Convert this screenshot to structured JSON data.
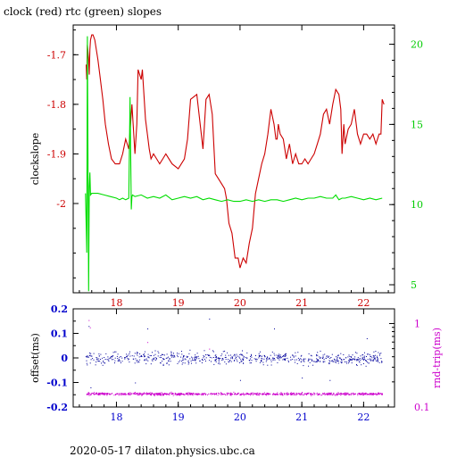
{
  "title": "clock (red) rtc (green) slopes",
  "footer": "2020-05-17  dilaton.physics.ubc.ca",
  "colors": {
    "clock": "#cc0000",
    "rtc": "#00dd00",
    "offset": "#00009c",
    "rndtrip": "#cc00cc",
    "axis_top_left": "#cc0000",
    "axis_top_right": "#00cc00",
    "axis_bottom_left": "#0000cc",
    "axis_bottom_right": "#cc00cc"
  },
  "chart_data": [
    {
      "type": "line",
      "panel": "top",
      "ylabel": "clockslope",
      "y2label": "",
      "xlim": [
        17.3,
        22.5
      ],
      "ylim": [
        -2.18,
        -1.64
      ],
      "y2lim": [
        4.5,
        21.2
      ],
      "xticks": [
        "18",
        "19",
        "20",
        "21",
        "22"
      ],
      "yticks": [
        "-1.7",
        "-1.8",
        "-1.9",
        "-2"
      ],
      "y2ticks": [
        "5",
        "10",
        "15",
        "20"
      ],
      "series": [
        {
          "name": "clock",
          "axis": "left",
          "x": [
            17.51,
            17.52,
            17.53,
            17.55,
            17.56,
            17.57,
            17.58,
            17.6,
            17.62,
            17.65,
            17.7,
            17.73,
            17.78,
            17.82,
            17.87,
            17.92,
            17.98,
            18.05,
            18.1,
            18.15,
            18.2,
            18.25,
            18.3,
            18.33,
            18.35,
            18.4,
            18.42,
            18.44,
            18.47,
            18.5,
            18.53,
            18.56,
            18.6,
            18.65,
            18.7,
            18.75,
            18.8,
            18.9,
            19.0,
            19.1,
            19.15,
            19.2,
            19.3,
            19.4,
            19.45,
            19.5,
            19.55,
            19.6,
            19.65,
            19.7,
            19.75,
            19.78,
            19.82,
            19.87,
            19.92,
            19.97,
            20.0,
            20.05,
            20.1,
            20.15,
            20.2,
            20.25,
            20.3,
            20.35,
            20.4,
            20.45,
            20.5,
            20.55,
            20.58,
            20.6,
            20.62,
            20.65,
            20.7,
            20.75,
            20.8,
            20.85,
            20.9,
            20.95,
            21.0,
            21.05,
            21.1,
            21.15,
            21.2,
            21.25,
            21.3,
            21.35,
            21.4,
            21.45,
            21.5,
            21.55,
            21.6,
            21.63,
            21.65,
            21.68,
            21.7,
            21.75,
            21.8,
            21.85,
            21.9,
            21.95,
            22.0,
            22.05,
            22.1,
            22.15,
            22.2,
            22.25,
            22.28,
            22.3,
            22.33
          ],
          "y": [
            -1.72,
            -1.75,
            -1.68,
            -1.71,
            -1.74,
            -1.69,
            -1.67,
            -1.66,
            -1.66,
            -1.67,
            -1.71,
            -1.74,
            -1.79,
            -1.84,
            -1.88,
            -1.91,
            -1.92,
            -1.92,
            -1.9,
            -1.87,
            -1.89,
            -1.8,
            -1.9,
            -1.84,
            -1.73,
            -1.75,
            -1.73,
            -1.77,
            -1.83,
            -1.86,
            -1.89,
            -1.91,
            -1.9,
            -1.91,
            -1.92,
            -1.91,
            -1.9,
            -1.92,
            -1.93,
            -1.91,
            -1.87,
            -1.79,
            -1.78,
            -1.89,
            -1.79,
            -1.78,
            -1.82,
            -1.94,
            -1.95,
            -1.96,
            -1.97,
            -1.99,
            -2.04,
            -2.06,
            -2.11,
            -2.11,
            -2.13,
            -2.11,
            -2.12,
            -2.08,
            -2.05,
            -1.98,
            -1.95,
            -1.92,
            -1.9,
            -1.86,
            -1.81,
            -1.84,
            -1.87,
            -1.87,
            -1.84,
            -1.86,
            -1.87,
            -1.91,
            -1.88,
            -1.92,
            -1.9,
            -1.92,
            -1.92,
            -1.91,
            -1.92,
            -1.91,
            -1.9,
            -1.88,
            -1.86,
            -1.82,
            -1.81,
            -1.84,
            -1.8,
            -1.77,
            -1.78,
            -1.81,
            -1.9,
            -1.84,
            -1.88,
            -1.85,
            -1.84,
            -1.81,
            -1.86,
            -1.88,
            -1.86,
            -1.86,
            -1.87,
            -1.86,
            -1.88,
            -1.86,
            -1.86,
            -1.79,
            -1.8
          ]
        },
        {
          "name": "rtc",
          "axis": "right",
          "x": [
            17.5,
            17.52,
            17.53,
            17.55,
            17.56,
            17.57,
            17.58,
            17.6,
            17.7,
            17.8,
            17.9,
            18.0,
            18.05,
            18.1,
            18.15,
            18.2,
            18.22,
            18.24,
            18.25,
            18.26,
            18.3,
            18.4,
            18.5,
            18.6,
            18.7,
            18.8,
            18.9,
            19.0,
            19.1,
            19.2,
            19.3,
            19.4,
            19.5,
            19.6,
            19.7,
            19.8,
            19.9,
            20.0,
            20.1,
            20.2,
            20.3,
            20.4,
            20.5,
            20.6,
            20.7,
            20.8,
            20.9,
            21.0,
            21.1,
            21.2,
            21.3,
            21.4,
            21.5,
            21.55,
            21.6,
            21.65,
            21.7,
            21.8,
            21.9,
            22.0,
            22.1,
            22.2,
            22.3
          ],
          "y": [
            10.7,
            7.0,
            20.5,
            4.6,
            11.1,
            12.0,
            10.6,
            10.7,
            10.7,
            10.6,
            10.5,
            10.4,
            10.3,
            10.4,
            10.3,
            10.4,
            16.7,
            9.7,
            10.5,
            10.6,
            10.5,
            10.6,
            10.4,
            10.5,
            10.4,
            10.6,
            10.3,
            10.4,
            10.5,
            10.4,
            10.5,
            10.3,
            10.4,
            10.3,
            10.2,
            10.3,
            10.2,
            10.2,
            10.3,
            10.2,
            10.3,
            10.2,
            10.3,
            10.3,
            10.2,
            10.3,
            10.4,
            10.3,
            10.4,
            10.4,
            10.5,
            10.4,
            10.4,
            10.6,
            10.3,
            10.4,
            10.4,
            10.5,
            10.4,
            10.3,
            10.4,
            10.3,
            10.4
          ]
        }
      ]
    },
    {
      "type": "scatter",
      "panel": "bottom",
      "ylabel": "offset(ms)",
      "y2label": "rnd-trip(ms)",
      "xlim": [
        17.3,
        22.5
      ],
      "ylim": [
        -0.2,
        0.2
      ],
      "y2lim": [
        0.1,
        1.5
      ],
      "y2scale": "log",
      "xticks": [
        "18",
        "19",
        "20",
        "21",
        "22"
      ],
      "yticks": [
        "0.2",
        "0.1",
        "0",
        "-0.1",
        "-0.2"
      ],
      "y2ticks": [
        "1",
        "0.1"
      ],
      "series": [
        {
          "name": "offset",
          "axis": "left",
          "x_range": [
            17.5,
            22.3
          ],
          "center": 0.0,
          "spread": 0.025,
          "outliers": [
            [
              17.55,
              0.13
            ],
            [
              17.58,
              -0.12
            ],
            [
              18.3,
              -0.1
            ],
            [
              18.5,
              0.12
            ],
            [
              19.5,
              0.16
            ],
            [
              20.0,
              -0.09
            ],
            [
              20.55,
              0.12
            ],
            [
              21.0,
              -0.08
            ],
            [
              21.45,
              -0.09
            ],
            [
              22.05,
              0.08
            ]
          ]
        },
        {
          "name": "rnd-trip",
          "axis": "right",
          "x_range": [
            17.5,
            22.3
          ],
          "center": 0.145,
          "spread_log": 0.015,
          "outliers": [
            [
              17.55,
              1.1
            ],
            [
              17.57,
              0.9
            ],
            [
              18.5,
              0.6
            ],
            [
              19.5,
              0.5
            ]
          ]
        }
      ]
    }
  ]
}
